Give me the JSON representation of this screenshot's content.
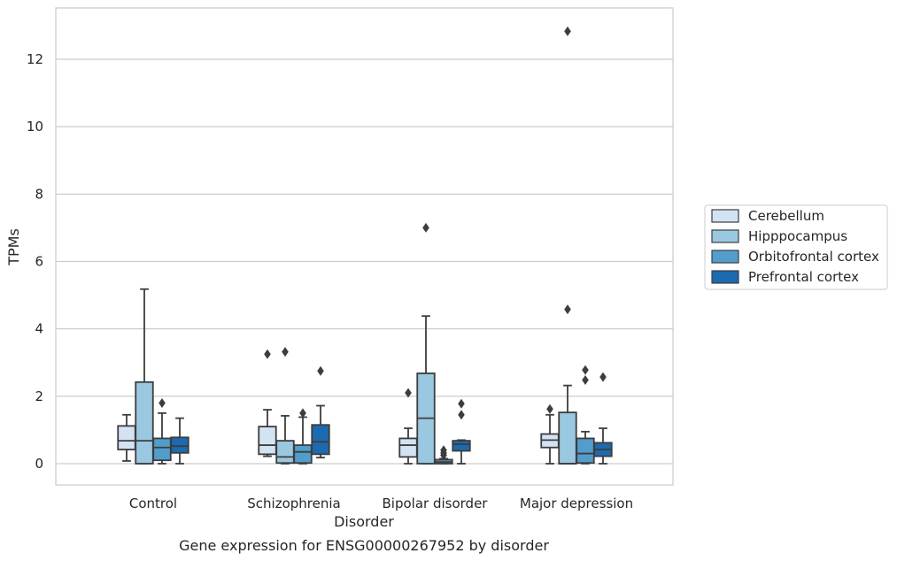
{
  "chart_data": {
    "type": "box",
    "caption": "Gene expression for ENSG00000267952 by disorder",
    "xlabel": "Disorder",
    "ylabel": "TPMs",
    "ylim": [
      -0.6,
      13.5
    ],
    "yticks": [
      0,
      2,
      4,
      6,
      8,
      10,
      12
    ],
    "grid": "horizontal",
    "legend_placement": "right",
    "categories": [
      "Control",
      "Schizophrenia",
      "Bipolar disorder",
      "Major depression"
    ],
    "series": [
      {
        "name": "Cerebellum",
        "color": "#d3e3f3",
        "boxes": [
          {
            "whisker_low": 0.08,
            "q1": 0.42,
            "median": 0.68,
            "q3": 1.12,
            "whisker_high": 1.45,
            "outliers": []
          },
          {
            "whisker_low": 0.22,
            "q1": 0.28,
            "median": 0.55,
            "q3": 1.1,
            "whisker_high": 1.6,
            "outliers": [
              3.25
            ]
          },
          {
            "whisker_low": 0.0,
            "q1": 0.2,
            "median": 0.55,
            "q3": 0.75,
            "whisker_high": 1.05,
            "outliers": [
              2.1
            ]
          },
          {
            "whisker_low": 0.0,
            "q1": 0.48,
            "median": 0.7,
            "q3": 0.88,
            "whisker_high": 1.45,
            "outliers": [
              1.62
            ]
          }
        ]
      },
      {
        "name": "Hipppocampus",
        "color": "#9ac8e0",
        "boxes": [
          {
            "whisker_low": 0.0,
            "q1": 0.0,
            "median": 0.68,
            "q3": 2.42,
            "whisker_high": 5.18,
            "outliers": []
          },
          {
            "whisker_low": 0.0,
            "q1": 0.02,
            "median": 0.2,
            "q3": 0.68,
            "whisker_high": 1.42,
            "outliers": [
              3.32
            ]
          },
          {
            "whisker_low": 0.0,
            "q1": 0.0,
            "median": 1.35,
            "q3": 2.68,
            "whisker_high": 4.38,
            "outliers": [
              7.0
            ]
          },
          {
            "whisker_low": 0.0,
            "q1": 0.0,
            "median": 0.0,
            "q3": 1.52,
            "whisker_high": 2.32,
            "outliers": [
              4.58,
              12.83
            ]
          }
        ]
      },
      {
        "name": "Orbitofrontal cortex",
        "color": "#529dcc",
        "boxes": [
          {
            "whisker_low": 0.0,
            "q1": 0.1,
            "median": 0.48,
            "q3": 0.75,
            "whisker_high": 1.5,
            "outliers": [
              1.8
            ]
          },
          {
            "whisker_low": 0.0,
            "q1": 0.02,
            "median": 0.35,
            "q3": 0.55,
            "whisker_high": 1.38,
            "outliers": [
              1.5
            ]
          },
          {
            "whisker_low": 0.0,
            "q1": 0.0,
            "median": 0.05,
            "q3": 0.12,
            "whisker_high": 0.15,
            "outliers": [
              0.25,
              0.32,
              0.4
            ]
          },
          {
            "whisker_low": 0.0,
            "q1": 0.02,
            "median": 0.3,
            "q3": 0.75,
            "whisker_high": 0.95,
            "outliers": [
              2.48,
              2.78
            ]
          }
        ]
      },
      {
        "name": "Prefrontal cortex",
        "color": "#1c6aaf",
        "boxes": [
          {
            "whisker_low": 0.0,
            "q1": 0.32,
            "median": 0.52,
            "q3": 0.78,
            "whisker_high": 1.35,
            "outliers": []
          },
          {
            "whisker_low": 0.18,
            "q1": 0.28,
            "median": 0.65,
            "q3": 1.15,
            "whisker_high": 1.72,
            "outliers": [
              2.75
            ]
          },
          {
            "whisker_low": 0.0,
            "q1": 0.38,
            "median": 0.58,
            "q3": 0.68,
            "whisker_high": 0.7,
            "outliers": [
              1.45,
              1.78
            ]
          },
          {
            "whisker_low": 0.0,
            "q1": 0.22,
            "median": 0.42,
            "q3": 0.62,
            "whisker_high": 1.05,
            "outliers": [
              2.57
            ]
          }
        ]
      }
    ]
  }
}
